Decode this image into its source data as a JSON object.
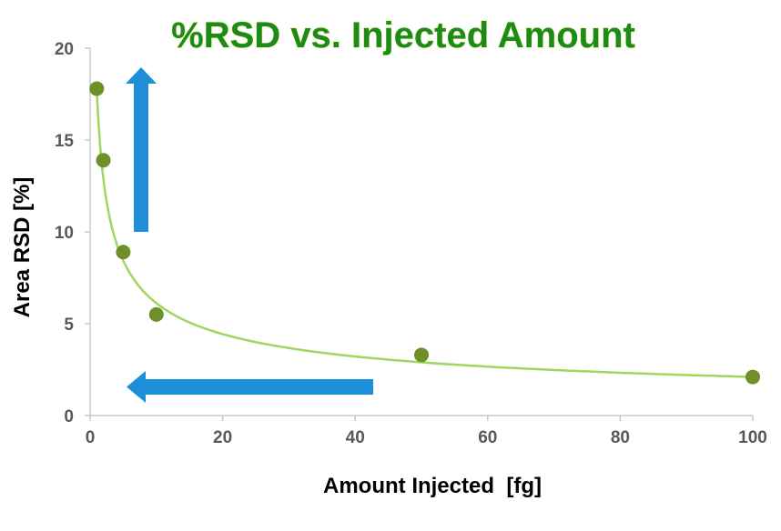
{
  "chart_data": {
    "type": "scatter",
    "title": "%RSD vs. Injected Amount",
    "xlabel": "Amount Injected  [fg]",
    "ylabel": "Area RSD [%]",
    "xlim": [
      0,
      100
    ],
    "ylim": [
      0,
      20
    ],
    "xticks": [
      0,
      20,
      40,
      60,
      80,
      100
    ],
    "yticks": [
      0,
      5,
      10,
      15,
      20
    ],
    "grid": false,
    "points": [
      {
        "x": 1,
        "y": 17.8
      },
      {
        "x": 2,
        "y": 13.9
      },
      {
        "x": 5,
        "y": 8.9
      },
      {
        "x": 10,
        "y": 5.5
      },
      {
        "x": 50,
        "y": 3.3
      },
      {
        "x": 100,
        "y": 2.1
      }
    ],
    "trendline": {
      "type": "power",
      "a": 17.8,
      "b": -0.464
    },
    "annotations": [
      {
        "type": "arrow",
        "direction": "up"
      },
      {
        "type": "arrow",
        "direction": "left"
      }
    ],
    "colors": {
      "title": "#1b8c1b",
      "points": "#6f8f2a",
      "trendline": "#9fd65e",
      "arrows": "#1c8fd8",
      "axis": "#c8c8c8"
    }
  }
}
